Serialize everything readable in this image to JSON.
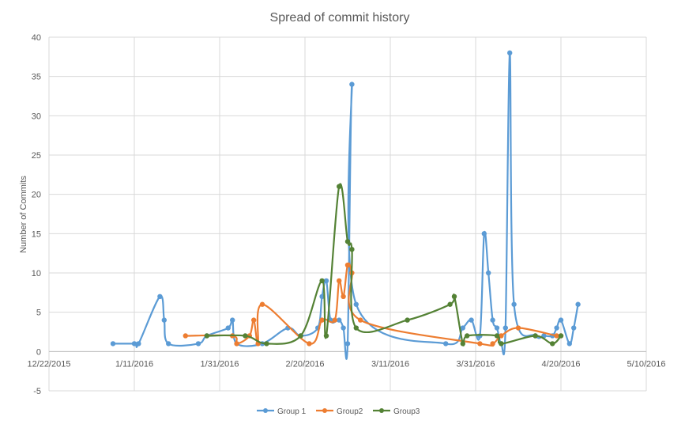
{
  "chart_data": {
    "type": "scatter",
    "title": "Spread of commit history",
    "xlabel": "",
    "ylabel": "Number of Commits",
    "x_type": "date",
    "xlim": [
      "2015-12-22",
      "2016-05-10"
    ],
    "ylim": [
      -5,
      40
    ],
    "x_ticks": [
      "2015-12-22",
      "2016-01-11",
      "2016-01-31",
      "2016-02-20",
      "2016-03-11",
      "2016-03-31",
      "2016-04-20",
      "2016-05-10"
    ],
    "x_tick_labels": [
      "12/22/2015",
      "1/11/2016",
      "1/31/2016",
      "2/20/2016",
      "3/11/2016",
      "3/31/2016",
      "4/20/2016",
      "5/10/2016"
    ],
    "y_ticks": [
      -5,
      0,
      5,
      10,
      15,
      20,
      25,
      30,
      35,
      40
    ],
    "y_tick_labels": [
      "-5",
      "0",
      "5",
      "10",
      "15",
      "20",
      "25",
      "30",
      "35",
      "40"
    ],
    "grid": true,
    "smooth_lines": true,
    "legend_position": "bottom",
    "series": [
      {
        "name": "Group 1",
        "color": "#5b9bd5",
        "points": [
          [
            "2016-01-06",
            1
          ],
          [
            "2016-01-11",
            1
          ],
          [
            "2016-01-12",
            1
          ],
          [
            "2016-01-17",
            7
          ],
          [
            "2016-01-18",
            4
          ],
          [
            "2016-01-19",
            1
          ],
          [
            "2016-01-26",
            1
          ],
          [
            "2016-01-28",
            2
          ],
          [
            "2016-02-02",
            3
          ],
          [
            "2016-02-03",
            4
          ],
          [
            "2016-02-04",
            1
          ],
          [
            "2016-02-10",
            1
          ],
          [
            "2016-02-16",
            3
          ],
          [
            "2016-02-19",
            2
          ],
          [
            "2016-02-23",
            3
          ],
          [
            "2016-02-24",
            7
          ],
          [
            "2016-02-25",
            9
          ],
          [
            "2016-02-26",
            4
          ],
          [
            "2016-02-28",
            4
          ],
          [
            "2016-02-29",
            3
          ],
          [
            "2016-03-01",
            1
          ],
          [
            "2016-03-02",
            34
          ],
          [
            "2016-03-03",
            6
          ],
          [
            "2016-03-24",
            1
          ],
          [
            "2016-03-28",
            3
          ],
          [
            "2016-03-30",
            4
          ],
          [
            "2016-04-01",
            2
          ],
          [
            "2016-04-02",
            15
          ],
          [
            "2016-04-03",
            10
          ],
          [
            "2016-04-04",
            4
          ],
          [
            "2016-04-05",
            3
          ],
          [
            "2016-04-06",
            1
          ],
          [
            "2016-04-07",
            3
          ],
          [
            "2016-04-08",
            38
          ],
          [
            "2016-04-09",
            6
          ],
          [
            "2016-04-14",
            2
          ],
          [
            "2016-04-16",
            2
          ],
          [
            "2016-04-18",
            2
          ],
          [
            "2016-04-19",
            3
          ],
          [
            "2016-04-20",
            4
          ],
          [
            "2016-04-22",
            1
          ],
          [
            "2016-04-23",
            3
          ],
          [
            "2016-04-24",
            6
          ]
        ]
      },
      {
        "name": "Group2",
        "color": "#ed7d31",
        "points": [
          [
            "2016-01-23",
            2
          ],
          [
            "2016-02-03",
            2
          ],
          [
            "2016-02-04",
            1
          ],
          [
            "2016-02-07",
            2
          ],
          [
            "2016-02-08",
            4
          ],
          [
            "2016-02-09",
            1
          ],
          [
            "2016-02-10",
            6
          ],
          [
            "2016-02-21",
            1
          ],
          [
            "2016-02-24",
            4
          ],
          [
            "2016-02-27",
            4
          ],
          [
            "2016-02-28",
            9
          ],
          [
            "2016-02-29",
            7
          ],
          [
            "2016-03-01",
            11
          ],
          [
            "2016-03-02",
            10
          ],
          [
            "2016-03-04",
            4
          ],
          [
            "2016-04-01",
            1
          ],
          [
            "2016-04-04",
            1
          ],
          [
            "2016-04-06",
            2
          ],
          [
            "2016-04-10",
            3
          ],
          [
            "2016-04-19",
            2
          ],
          [
            "2016-04-20",
            2
          ]
        ]
      },
      {
        "name": "Group3",
        "color": "#548235",
        "points": [
          [
            "2016-01-28",
            2
          ],
          [
            "2016-02-06",
            2
          ],
          [
            "2016-02-11",
            1
          ],
          [
            "2016-02-19",
            2
          ],
          [
            "2016-02-24",
            9
          ],
          [
            "2016-02-25",
            2
          ],
          [
            "2016-02-28",
            21
          ],
          [
            "2016-03-01",
            14
          ],
          [
            "2016-03-02",
            13
          ],
          [
            "2016-03-03",
            3
          ],
          [
            "2016-03-15",
            4
          ],
          [
            "2016-03-25",
            6
          ],
          [
            "2016-03-26",
            7
          ],
          [
            "2016-03-28",
            1
          ],
          [
            "2016-03-29",
            2
          ],
          [
            "2016-04-05",
            2
          ],
          [
            "2016-04-06",
            1
          ],
          [
            "2016-04-14",
            2
          ],
          [
            "2016-04-18",
            1
          ],
          [
            "2016-04-20",
            2
          ]
        ]
      }
    ]
  }
}
